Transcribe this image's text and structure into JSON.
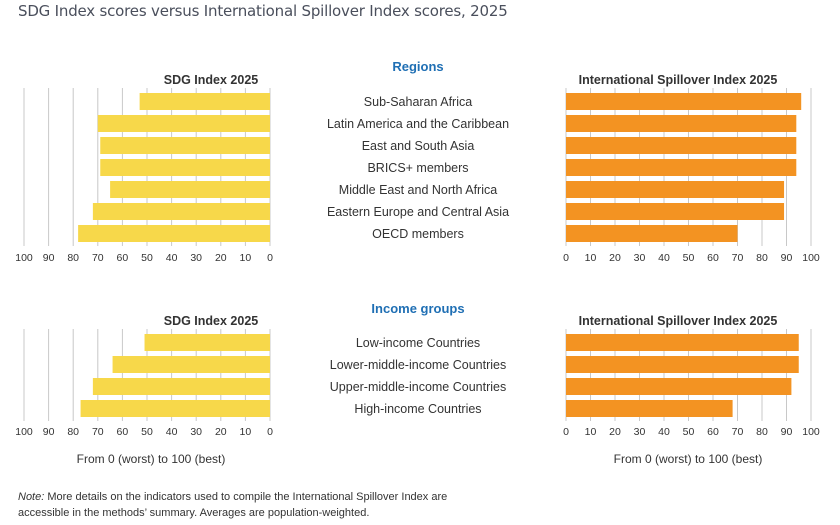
{
  "title": "SDG Index scores versus International Spillover Index scores, 2025",
  "colors": {
    "sdg_bar": "#f7d84a",
    "spillover_bar": "#f39322",
    "section_header": "#1f6fb4",
    "grid": "#c8c8c8"
  },
  "axis_caption": "From 0 (worst) to 100 (best)",
  "note": {
    "label": "Note:",
    "text": " More details on the indicators used to compile the International Spillover Index are accessible in the methods’ summary. Averages are population-weighted."
  },
  "chart_data": [
    {
      "type": "bar",
      "group": "Regions",
      "series_left": "SDG Index 2025",
      "series_right": "International Spillover Index 2025",
      "categories": [
        "Sub-Saharan Africa",
        "Latin America and the Caribbean",
        "East and South Asia",
        "BRICS+ members",
        "Middle East and North Africa",
        "Eastern Europe and Central Asia",
        "OECD members"
      ],
      "sdg_values": [
        53,
        70,
        69,
        69,
        65,
        72,
        78
      ],
      "spillover_values": [
        96,
        94,
        94,
        94,
        89,
        89,
        70
      ],
      "xlim": [
        0,
        100
      ],
      "ticks": [
        100,
        90,
        80,
        70,
        60,
        50,
        40,
        30,
        20,
        10,
        0
      ]
    },
    {
      "type": "bar",
      "group": "Income groups",
      "series_left": "SDG Index 2025",
      "series_right": "International Spillover Index 2025",
      "categories": [
        "Low-income Countries",
        "Lower-middle-income Countries",
        "Upper-middle-income Countries",
        "High-income Countries"
      ],
      "sdg_values": [
        51,
        64,
        72,
        77
      ],
      "spillover_values": [
        95,
        95,
        92,
        68
      ],
      "xlim": [
        0,
        100
      ],
      "ticks": [
        100,
        90,
        80,
        70,
        60,
        50,
        40,
        30,
        20,
        10,
        0
      ]
    }
  ]
}
